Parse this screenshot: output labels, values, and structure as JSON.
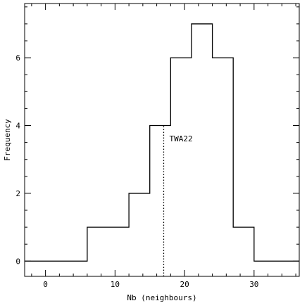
{
  "chart_data": {
    "type": "bar",
    "subtype": "step-histogram",
    "title": "",
    "xlabel": "Nb (neighbours)",
    "ylabel": "Frequency",
    "xlim": [
      -3,
      36.5
    ],
    "ylim": [
      -0.45,
      7.6
    ],
    "xticks": [
      0,
      10,
      20,
      30
    ],
    "yticks": [
      0,
      2,
      4,
      6
    ],
    "minor_xtick_step": 2,
    "minor_ytick_step": 0.5,
    "bin_edges": [
      -3,
      6,
      12,
      15,
      18,
      21,
      24,
      27,
      30,
      36.5
    ],
    "values": [
      0,
      1,
      2,
      4,
      6,
      7,
      6,
      1,
      0
    ],
    "annotation": {
      "label": "TWA22",
      "x": 17,
      "y_top": 4
    },
    "grid": false,
    "legend": "none",
    "colors": {
      "line": "#000000",
      "background": "#ffffff"
    }
  }
}
